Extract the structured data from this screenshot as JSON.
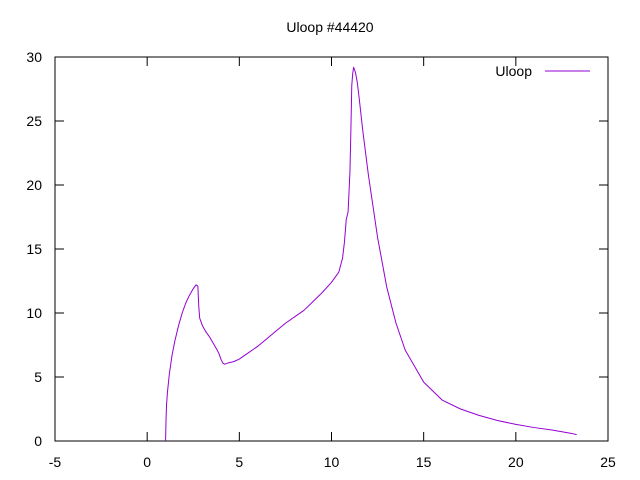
{
  "chart_data": {
    "type": "line",
    "title": "Uloop #44420",
    "xlabel": "",
    "ylabel": "",
    "xlim": [
      -5,
      25
    ],
    "ylim": [
      0,
      30
    ],
    "x_ticks": [
      -5,
      0,
      5,
      10,
      15,
      20,
      25
    ],
    "y_ticks": [
      0,
      5,
      10,
      15,
      20,
      25,
      30
    ],
    "grid": false,
    "legend": {
      "position": "top-right"
    },
    "series": [
      {
        "name": "Uloop",
        "color": "#9400d3",
        "x": [
          1.0,
          1.02,
          1.05,
          1.1,
          1.2,
          1.35,
          1.5,
          1.7,
          1.9,
          2.1,
          2.3,
          2.5,
          2.65,
          2.75,
          2.8,
          2.85,
          2.9,
          3.0,
          3.2,
          3.4,
          3.6,
          3.8,
          3.9,
          4.0,
          4.1,
          4.2,
          4.4,
          4.7,
          5.0,
          5.5,
          6.0,
          6.5,
          7.0,
          7.5,
          8.0,
          8.5,
          9.0,
          9.5,
          10.0,
          10.4,
          10.6,
          10.7,
          10.8,
          10.9,
          11.0,
          11.05,
          11.1,
          11.15,
          11.2,
          11.3,
          11.4,
          11.5,
          11.7,
          12.0,
          12.5,
          13.0,
          13.5,
          14.0,
          15.0,
          16.0,
          17.0,
          18.0,
          19.0,
          20.0,
          21.0,
          22.0,
          23.0,
          23.3
        ],
        "y": [
          0.0,
          1.5,
          2.8,
          3.8,
          5.2,
          6.7,
          7.8,
          9.0,
          10.0,
          10.8,
          11.4,
          11.9,
          12.2,
          12.1,
          10.5,
          9.6,
          9.4,
          9.0,
          8.5,
          8.1,
          7.6,
          7.1,
          6.8,
          6.4,
          6.1,
          6.0,
          6.1,
          6.2,
          6.4,
          6.9,
          7.4,
          8.0,
          8.6,
          9.2,
          9.7,
          10.2,
          10.9,
          11.6,
          12.4,
          13.2,
          14.3,
          15.5,
          17.3,
          17.9,
          21.0,
          24.2,
          27.8,
          28.7,
          29.2,
          28.8,
          28.0,
          26.8,
          24.2,
          20.8,
          15.9,
          12.0,
          9.2,
          7.1,
          4.6,
          3.2,
          2.5,
          2.0,
          1.6,
          1.3,
          1.05,
          0.85,
          0.6,
          0.5
        ]
      }
    ]
  }
}
